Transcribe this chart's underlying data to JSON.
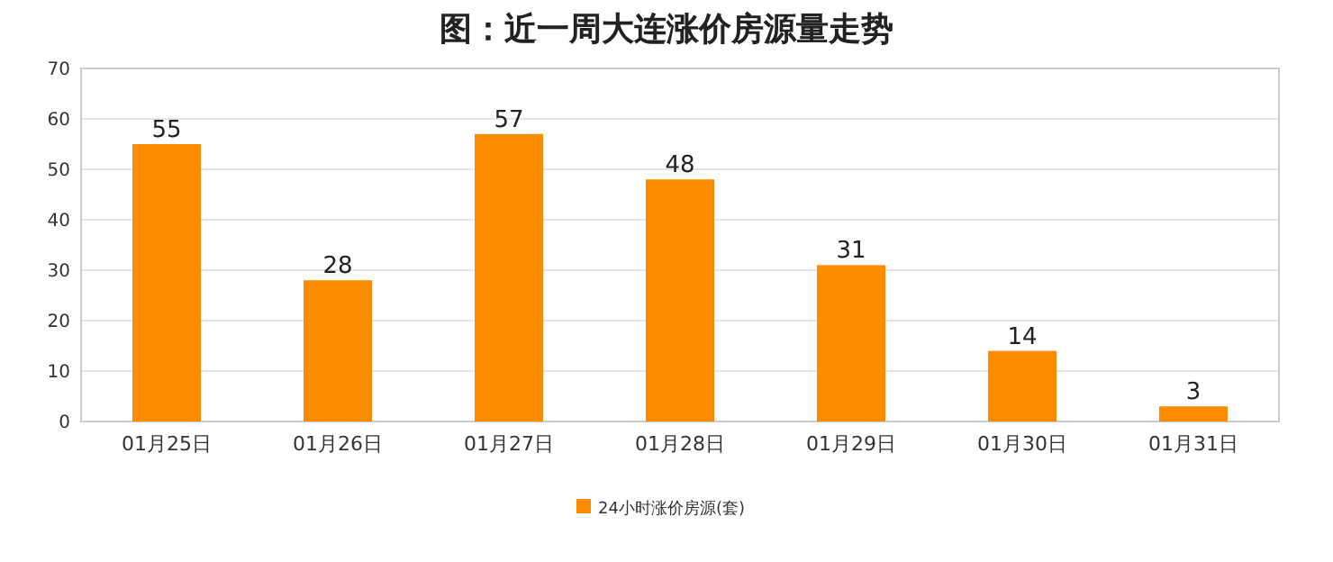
{
  "chart_data": {
    "type": "bar",
    "title": "图：近一周大连涨价房源量走势",
    "categories": [
      "01月25日",
      "01月26日",
      "01月27日",
      "01月28日",
      "01月29日",
      "01月30日",
      "01月31日"
    ],
    "series": [
      {
        "name": "24小时涨价房源(套)",
        "color": "#ff8c00",
        "values": [
          55,
          28,
          57,
          48,
          31,
          14,
          3
        ]
      }
    ],
    "ylim": [
      0,
      70
    ],
    "yticks": [
      0,
      10,
      20,
      30,
      40,
      50,
      60,
      70
    ],
    "grid": "y",
    "legend": "bottom",
    "data_labels": true
  }
}
